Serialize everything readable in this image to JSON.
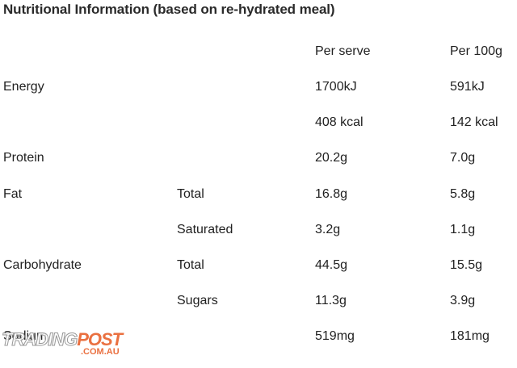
{
  "title": "Nutritional Information (based on re-hydrated meal)",
  "table": {
    "header": {
      "per_serve": "Per serve",
      "per_100g": "Per 100g"
    },
    "rows": [
      {
        "label": "Energy",
        "per_serve": "1700kJ",
        "per_100g": "591kJ"
      },
      {
        "per_serve": "408 kcal",
        "per_100g": "142 kcal"
      },
      {
        "label": "Protein",
        "per_serve": "20.2g",
        "per_100g": "7.0g"
      },
      {
        "label": "Fat",
        "sub": "Total",
        "per_serve": "16.8g",
        "per_100g": "5.8g"
      },
      {
        "sub": "Saturated",
        "per_serve": "3.2g",
        "per_100g": "1.1g"
      },
      {
        "label": "Carbohydrate",
        "sub": "Total",
        "per_serve": "44.5g",
        "per_100g": "15.5g"
      },
      {
        "sub": "Sugars",
        "per_serve": "11.3g",
        "per_100g": "3.9g"
      },
      {
        "label": "Sodium",
        "per_serve": "519mg",
        "per_100g": "181mg"
      }
    ]
  },
  "watermark": {
    "trading": "TRADING",
    "post": "POST",
    "domain": ".COM.AU"
  }
}
